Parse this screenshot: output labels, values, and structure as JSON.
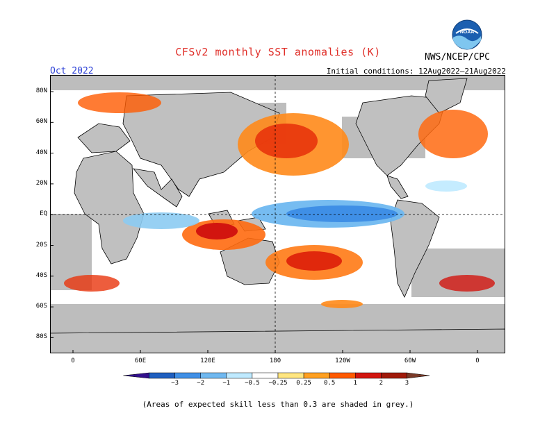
{
  "header": {
    "title": "CFSv2 monthly SST anomalies (K)",
    "month": "Oct 2022",
    "initial_conditions": "Initial conditions: 12Aug2022–21Aug2022",
    "agency": "NWS/NCEP/CPC",
    "logo": "NOAA"
  },
  "map": {
    "lat_labels": [
      "80N",
      "60N",
      "40N",
      "20N",
      "EQ",
      "20S",
      "40S",
      "60S",
      "80S"
    ],
    "lon_labels": [
      "0",
      "60E",
      "120E",
      "180",
      "120W",
      "60W",
      "0"
    ],
    "colors": {
      "land": "#c0c0c0",
      "ocean": "#ffffff",
      "low_skill": "#b9b9b9"
    }
  },
  "colorbar": {
    "ticks": [
      "−3",
      "−2",
      "−1",
      "−0.5",
      "−0.25",
      "0.25",
      "0.5",
      "1",
      "2",
      "3"
    ],
    "colors": [
      "#32108c",
      "#1f5fbf",
      "#3f8fe6",
      "#6fb8f0",
      "#bfeaff",
      "#ffffff",
      "#ffe680",
      "#ffa020",
      "#ff5a00",
      "#d2150f",
      "#a01a0a",
      "#7a3a28"
    ]
  },
  "footnote": "(Areas of expected skill less than 0.3 are shaded in grey.)"
}
